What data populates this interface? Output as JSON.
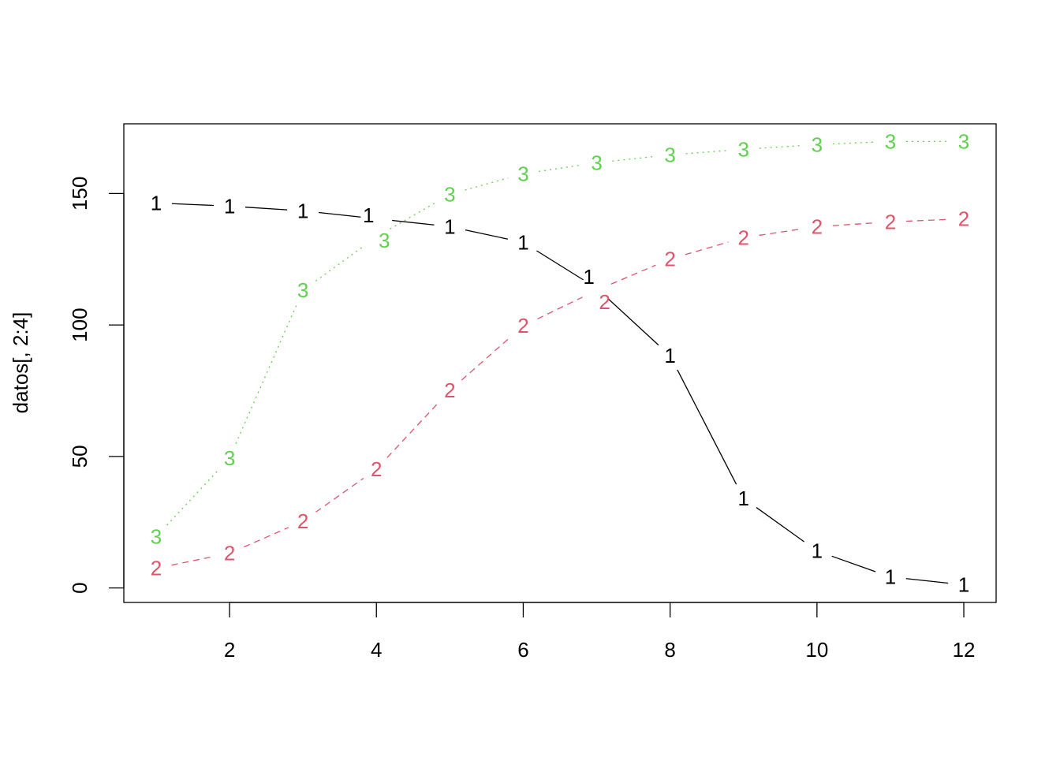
{
  "chart_data": {
    "type": "line",
    "title": "",
    "xlabel": "",
    "ylabel": "datos[, 2:4]",
    "x": [
      1,
      2,
      3,
      4,
      5,
      6,
      7,
      8,
      9,
      10,
      11,
      12
    ],
    "xlim": [
      0.56,
      12.44
    ],
    "ylim": [
      -5.5,
      176.5
    ],
    "xticks": [
      2,
      4,
      6,
      8,
      10,
      12
    ],
    "yticks": [
      0,
      50,
      100,
      150
    ],
    "grid": false,
    "series": [
      {
        "label": "1",
        "color": "#000000",
        "dash": "solid",
        "values": [
          146.4,
          145.2,
          143.4,
          140.4,
          137.4,
          131.4,
          114.0,
          88.3,
          34.1,
          14.1,
          4.2,
          1.2
        ]
      },
      {
        "label": "2",
        "color": "#DF536B",
        "dash": "dashed",
        "values": [
          7.5,
          13.2,
          25.4,
          45.2,
          75.1,
          99.7,
          113.2,
          125.1,
          133.2,
          137.4,
          139.2,
          140.4
        ]
      },
      {
        "label": "3",
        "color": "#61D04F",
        "dash": "dotted",
        "values": [
          19.5,
          49.4,
          113.2,
          133.5,
          149.7,
          157.5,
          161.7,
          164.7,
          166.8,
          168.6,
          169.8,
          169.8
        ]
      }
    ]
  }
}
